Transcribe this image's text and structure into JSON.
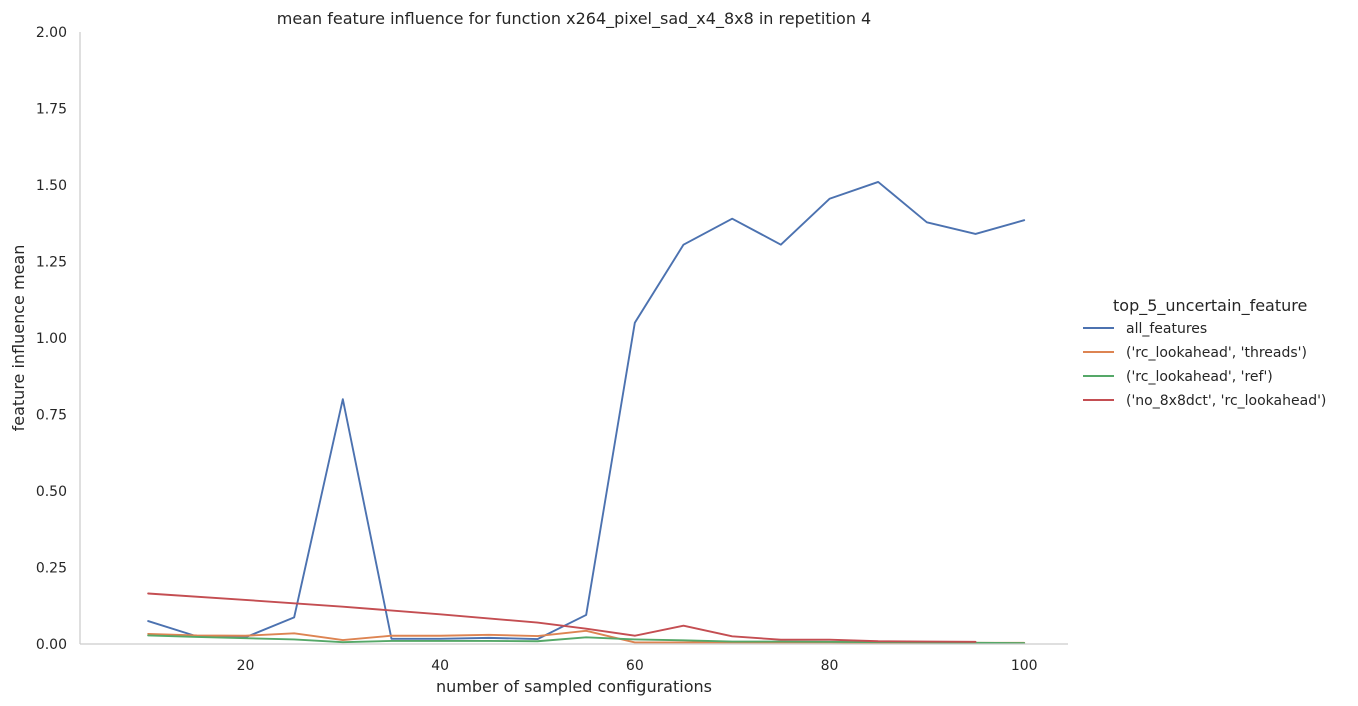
{
  "chart_data": {
    "type": "line",
    "title": "mean feature influence for function x264_pixel_sad_x4_8x8 in repetition 4",
    "xlabel": "number of sampled configurations",
    "ylabel": "feature influence mean",
    "xlim": [
      3,
      104.5
    ],
    "ylim": [
      0,
      2.0
    ],
    "xticks": [
      20,
      40,
      60,
      80,
      100
    ],
    "yticks": [
      0.0,
      0.25,
      0.5,
      0.75,
      1.0,
      1.25,
      1.5,
      1.75,
      2.0
    ],
    "xtick_labels": [
      "20",
      "40",
      "60",
      "80",
      "100"
    ],
    "ytick_labels": [
      "0.00",
      "0.25",
      "0.50",
      "0.75",
      "1.00",
      "1.25",
      "1.50",
      "1.75",
      "2.00"
    ],
    "grid": false,
    "legend_position": "right",
    "legend_title": "top_5_uncertain_feature",
    "series": [
      {
        "name": "all_features",
        "color": "#4c72b0",
        "x": [
          10,
          15,
          20,
          25,
          30,
          35,
          40,
          45,
          50,
          55,
          60,
          65,
          70,
          75,
          80,
          85,
          90,
          95,
          100
        ],
        "y": [
          0.075,
          0.025,
          0.022,
          0.087,
          0.8,
          0.017,
          0.017,
          0.02,
          0.016,
          0.095,
          1.05,
          1.305,
          1.39,
          1.305,
          1.455,
          1.51,
          1.378,
          1.34,
          1.385
        ]
      },
      {
        "name": "('rc_lookahead', 'threads')",
        "color": "#dd8452",
        "x": [
          10,
          15,
          20,
          25,
          30,
          35,
          40,
          45,
          50,
          55,
          60,
          65,
          70,
          75,
          80,
          85,
          90,
          95,
          100
        ],
        "y": [
          0.033,
          0.028,
          0.027,
          0.035,
          0.013,
          0.027,
          0.027,
          0.03,
          0.026,
          0.043,
          0.005,
          0.005,
          0.005,
          0.005,
          0.005,
          0.004,
          0.004,
          0.004,
          0.004
        ]
      },
      {
        "name": "('rc_lookahead', 'ref')",
        "color": "#55a868",
        "x": [
          10,
          15,
          20,
          25,
          30,
          35,
          40,
          45,
          50,
          55,
          60,
          65,
          70,
          75,
          80,
          85,
          90,
          95,
          100
        ],
        "y": [
          0.028,
          0.023,
          0.019,
          0.015,
          0.006,
          0.01,
          0.01,
          0.01,
          0.009,
          0.022,
          0.015,
          0.012,
          0.008,
          0.008,
          0.007,
          0.006,
          0.005,
          0.004,
          0.003
        ]
      },
      {
        "name": "('no_8x8dct', 'rc_lookahead')",
        "color": "#c44e52",
        "x": [
          10,
          20,
          30,
          40,
          50,
          55,
          60,
          65,
          70,
          75,
          80,
          85,
          90,
          95
        ],
        "y": [
          0.165,
          0.144,
          0.122,
          0.097,
          0.07,
          0.05,
          0.027,
          0.06,
          0.025,
          0.014,
          0.014,
          0.009,
          0.008,
          0.007
        ]
      }
    ]
  }
}
